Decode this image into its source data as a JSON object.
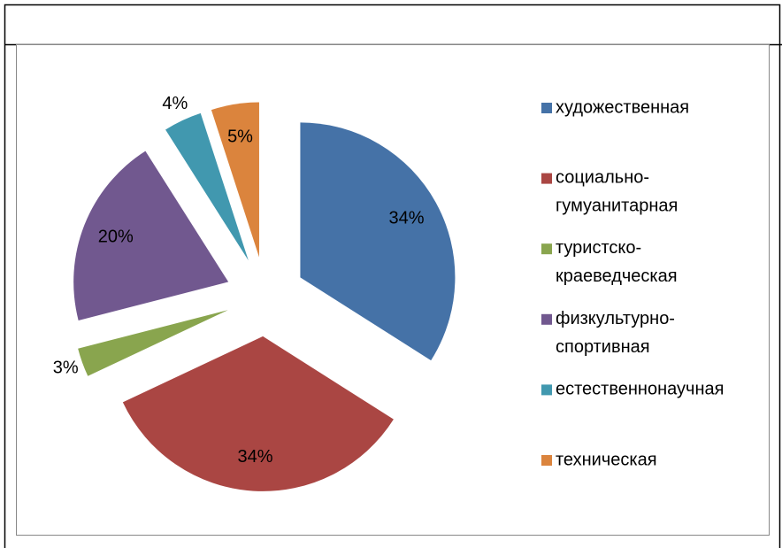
{
  "chart_data": {
    "type": "pie",
    "categories": [
      "художественная",
      "социально-гумуанитарная",
      "туристско-краеведческая",
      "физкультурно-спортивная",
      "естественнонаучная",
      "техническая"
    ],
    "values": [
      34,
      34,
      3,
      20,
      4,
      5
    ],
    "value_labels": [
      "34%",
      "34%",
      "3%",
      "20%",
      "4%",
      "5%"
    ],
    "colors": [
      "#4572a7",
      "#aa4643",
      "#89a54e",
      "#71588f",
      "#4198af",
      "#db843d"
    ],
    "legend": "right"
  }
}
